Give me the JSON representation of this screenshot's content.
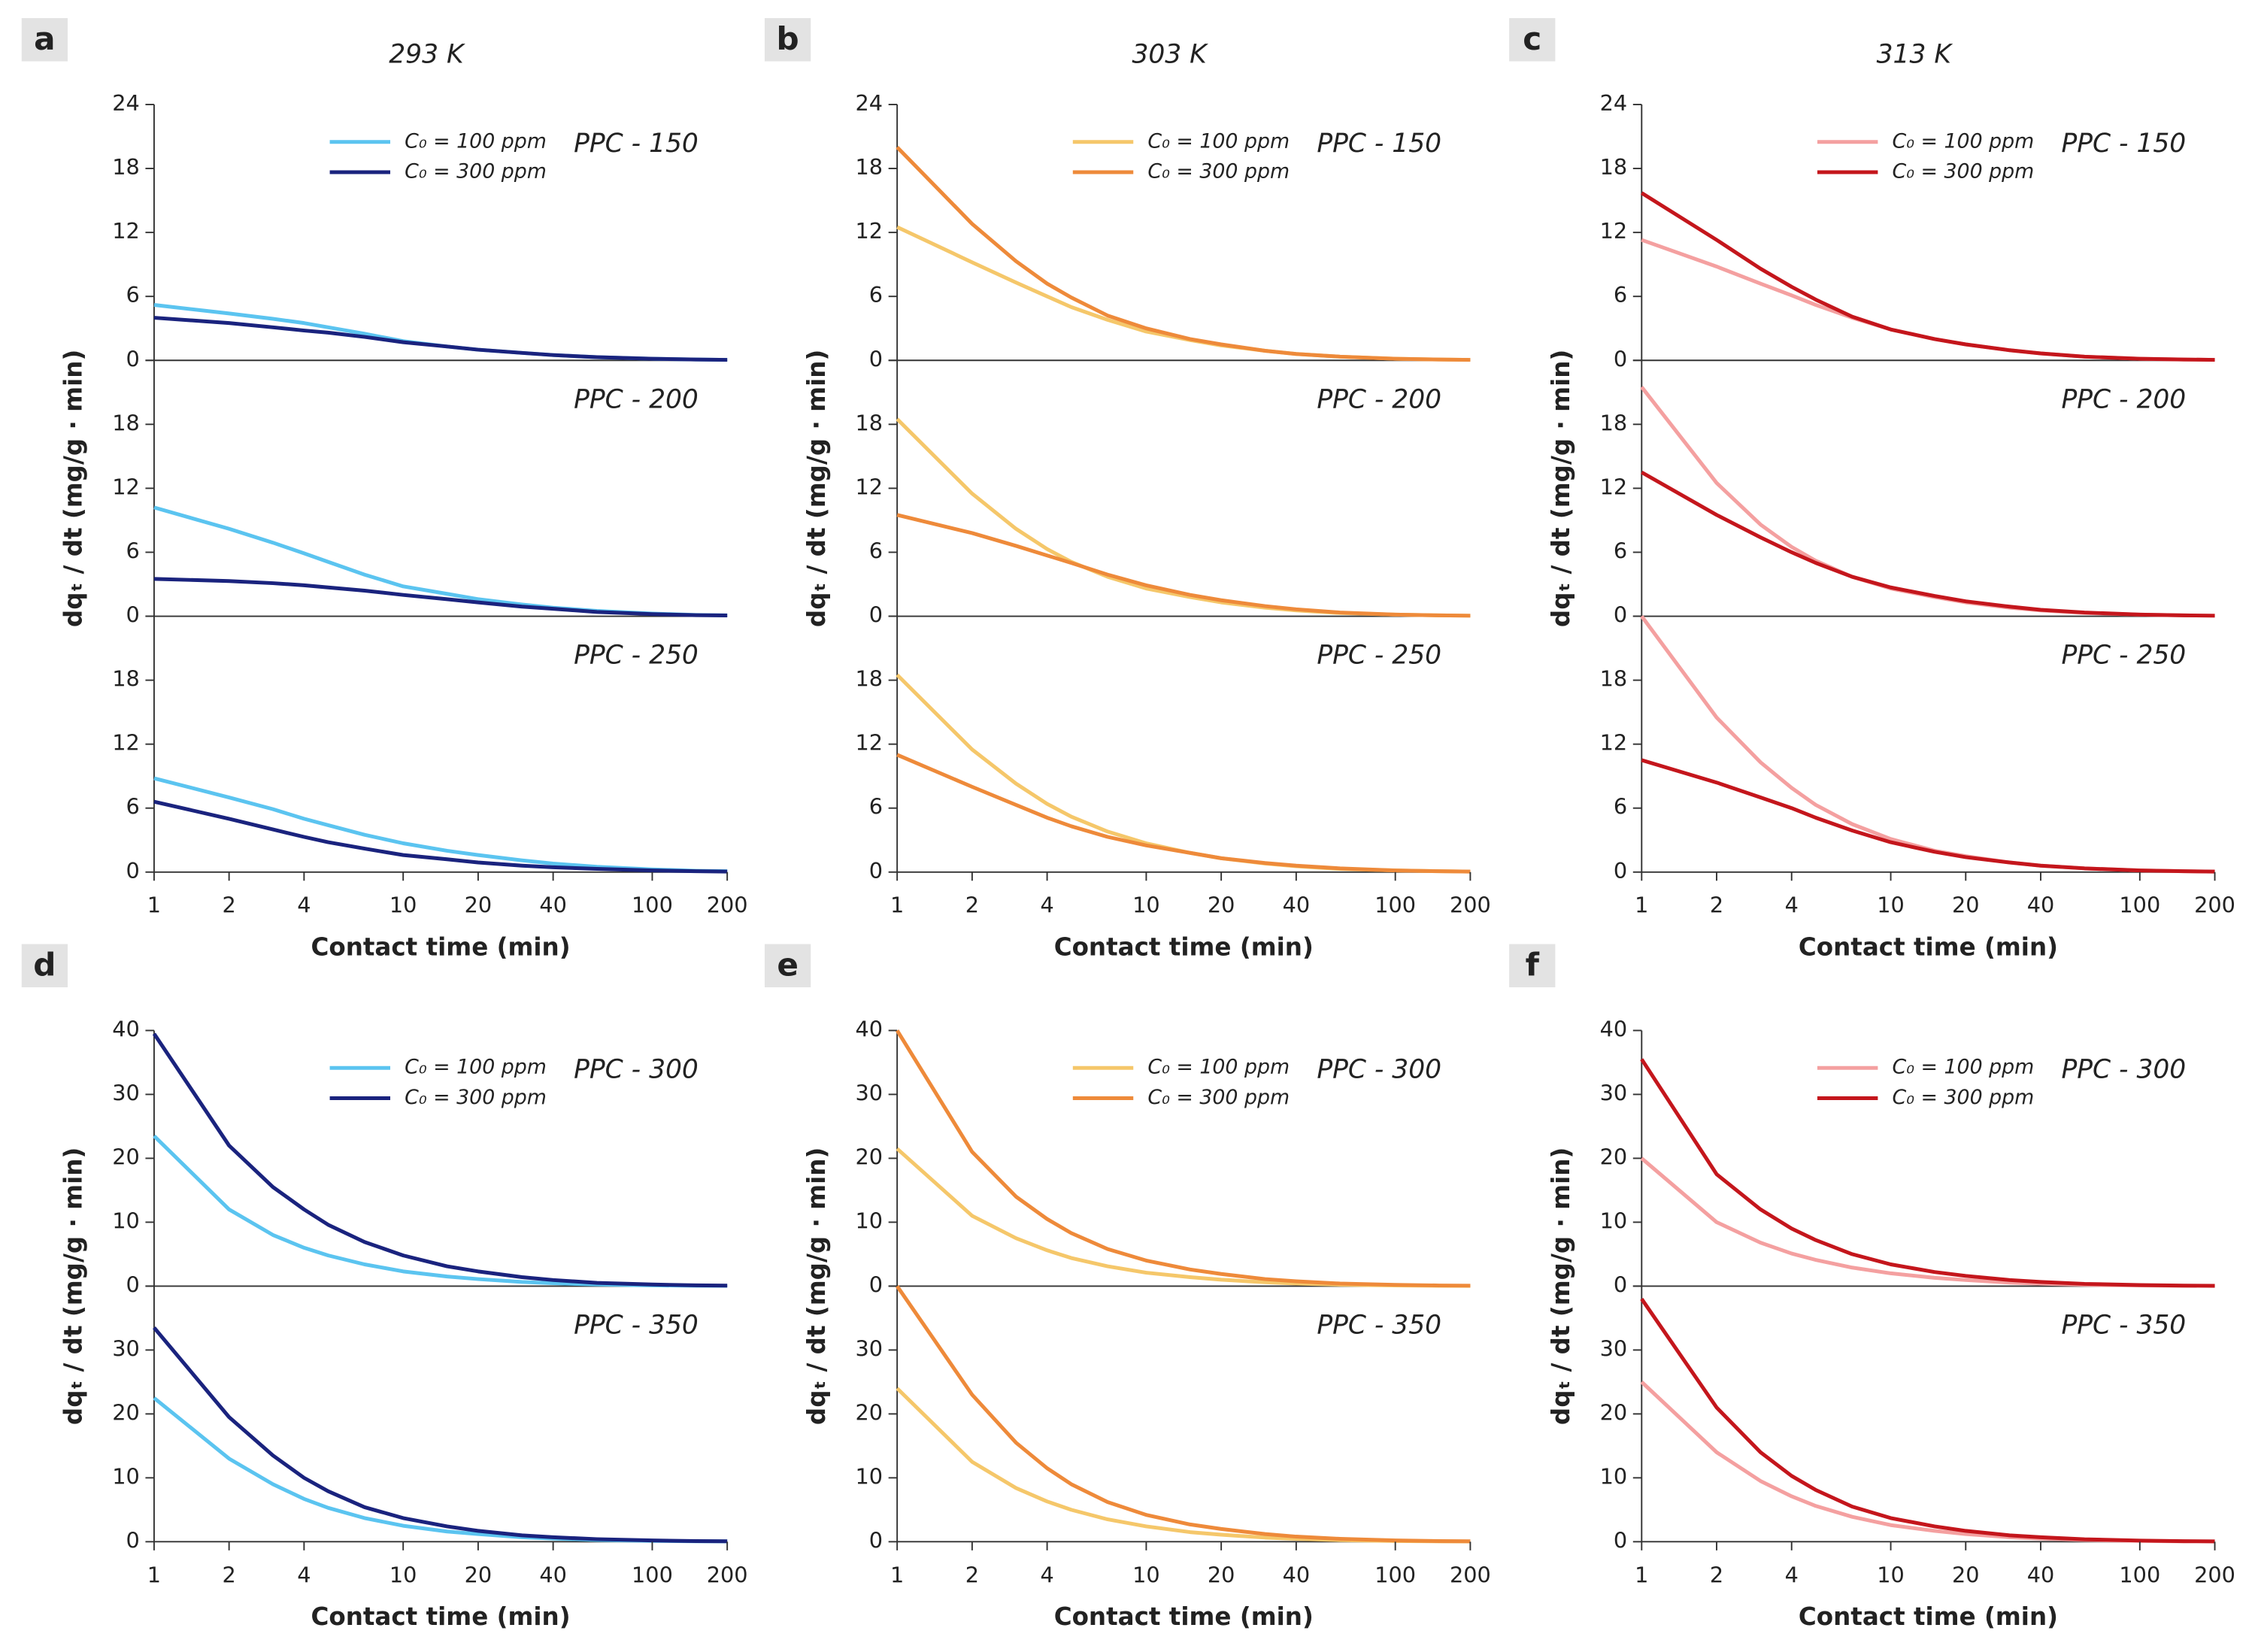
{
  "chart_data": [
    {
      "type": "line",
      "label": "a",
      "title": "293 K",
      "xlabel": "Contact time (min)",
      "ylabel": "dqₜ / dt (mg/g · min)",
      "x": [
        1,
        2,
        3,
        4,
        5,
        7,
        10,
        15,
        20,
        30,
        40,
        60,
        100,
        150,
        200
      ],
      "xlim": [
        1,
        200
      ],
      "xticks": [
        1,
        2,
        4,
        10,
        20,
        40,
        100,
        200
      ],
      "log_x": true,
      "ylim": [
        0,
        24
      ],
      "yticks": [
        0,
        6,
        12,
        18,
        24
      ],
      "subplots": [
        {
          "annotation": "PPC - 150",
          "series": [
            {
              "name": "C₀ = 100 ppm",
              "color": "#5bc4f0",
              "values": [
                5.2,
                4.4,
                3.9,
                3.5,
                3.1,
                2.5,
                1.8,
                1.3,
                1.0,
                0.7,
                0.5,
                0.3,
                0.15,
                0.08,
                0.05
              ]
            },
            {
              "name": "C₀ = 300 ppm",
              "color": "#1a237e",
              "values": [
                4.0,
                3.5,
                3.1,
                2.8,
                2.6,
                2.2,
                1.7,
                1.3,
                1.0,
                0.7,
                0.5,
                0.3,
                0.15,
                0.08,
                0.05
              ]
            }
          ]
        },
        {
          "annotation": "PPC - 200",
          "series": [
            {
              "color": "#5bc4f0",
              "values": [
                10.2,
                8.2,
                6.9,
                5.9,
                5.1,
                3.9,
                2.8,
                2.1,
                1.6,
                1.1,
                0.8,
                0.5,
                0.25,
                0.12,
                0.08
              ]
            },
            {
              "color": "#1a237e",
              "values": [
                3.5,
                3.3,
                3.1,
                2.9,
                2.7,
                2.4,
                2.0,
                1.6,
                1.3,
                0.9,
                0.7,
                0.4,
                0.2,
                0.1,
                0.07
              ]
            }
          ]
        },
        {
          "annotation": "PPC - 250",
          "series": [
            {
              "color": "#5bc4f0",
              "values": [
                8.8,
                7.0,
                5.9,
                5.0,
                4.4,
                3.5,
                2.7,
                2.0,
                1.6,
                1.1,
                0.8,
                0.5,
                0.25,
                0.12,
                0.08
              ]
            },
            {
              "color": "#1a237e",
              "values": [
                6.6,
                5.0,
                4.0,
                3.3,
                2.8,
                2.2,
                1.6,
                1.2,
                0.9,
                0.6,
                0.45,
                0.3,
                0.15,
                0.08,
                0.05
              ]
            }
          ]
        }
      ]
    },
    {
      "type": "line",
      "label": "b",
      "title": "303 K",
      "xlabel": "Contact time (min)",
      "ylabel": "dqₜ / dt (mg/g · min)",
      "x": [
        1,
        2,
        3,
        4,
        5,
        7,
        10,
        15,
        20,
        30,
        40,
        60,
        100,
        150,
        200
      ],
      "xlim": [
        1,
        200
      ],
      "xticks": [
        1,
        2,
        4,
        10,
        20,
        40,
        100,
        200
      ],
      "log_x": true,
      "ylim": [
        0,
        24
      ],
      "yticks": [
        0,
        6,
        12,
        18,
        24
      ],
      "subplots": [
        {
          "annotation": "PPC - 150",
          "series": [
            {
              "name": "C₀ = 100 ppm",
              "color": "#f5c76a",
              "values": [
                12.5,
                9.2,
                7.3,
                6.0,
                5.0,
                3.8,
                2.7,
                1.9,
                1.4,
                0.9,
                0.6,
                0.35,
                0.15,
                0.08,
                0.05
              ]
            },
            {
              "name": "C₀ = 300 ppm",
              "color": "#ee8a3a",
              "values": [
                20,
                12.8,
                9.3,
                7.2,
                5.9,
                4.2,
                3.0,
                2.0,
                1.5,
                0.9,
                0.6,
                0.35,
                0.15,
                0.08,
                0.05
              ]
            }
          ]
        },
        {
          "annotation": "PPC - 200",
          "series": [
            {
              "color": "#f5c76a",
              "values": [
                18.5,
                11.5,
                8.2,
                6.3,
                5.1,
                3.7,
                2.6,
                1.8,
                1.3,
                0.8,
                0.55,
                0.3,
                0.15,
                0.08,
                0.05
              ]
            },
            {
              "color": "#ee8a3a",
              "values": [
                9.5,
                7.8,
                6.6,
                5.7,
                5.0,
                3.9,
                2.9,
                2.0,
                1.5,
                0.95,
                0.65,
                0.35,
                0.15,
                0.08,
                0.05
              ]
            }
          ]
        },
        {
          "annotation": "PPC - 250",
          "series": [
            {
              "color": "#f5c76a",
              "values": [
                18.5,
                11.5,
                8.3,
                6.4,
                5.2,
                3.8,
                2.7,
                1.8,
                1.3,
                0.8,
                0.55,
                0.3,
                0.15,
                0.08,
                0.05
              ]
            },
            {
              "color": "#ee8a3a",
              "values": [
                11,
                8.0,
                6.3,
                5.1,
                4.3,
                3.3,
                2.5,
                1.8,
                1.3,
                0.85,
                0.6,
                0.35,
                0.15,
                0.08,
                0.05
              ]
            }
          ]
        }
      ]
    },
    {
      "type": "line",
      "label": "c",
      "title": "313 K",
      "xlabel": "Contact time (min)",
      "ylabel": "dqₜ / dt (mg/g · min)",
      "x": [
        1,
        2,
        3,
        4,
        5,
        7,
        10,
        15,
        20,
        30,
        40,
        60,
        100,
        150,
        200
      ],
      "xlim": [
        1,
        200
      ],
      "xticks": [
        1,
        2,
        4,
        10,
        20,
        40,
        100,
        200
      ],
      "log_x": true,
      "ylim": [
        0,
        24
      ],
      "yticks": [
        0,
        6,
        12,
        18,
        24
      ],
      "subplots": [
        {
          "annotation": "PPC - 150",
          "series": [
            {
              "name": "C₀ = 100 ppm",
              "color": "#f4a0a0",
              "values": [
                11.3,
                8.8,
                7.2,
                6.1,
                5.2,
                4.0,
                2.9,
                2.0,
                1.5,
                0.95,
                0.65,
                0.35,
                0.15,
                0.08,
                0.05
              ]
            },
            {
              "name": "C₀ = 300 ppm",
              "color": "#c4161c",
              "values": [
                15.7,
                11.3,
                8.6,
                6.9,
                5.7,
                4.1,
                2.9,
                2.0,
                1.5,
                0.95,
                0.65,
                0.35,
                0.15,
                0.08,
                0.05
              ]
            }
          ]
        },
        {
          "annotation": "PPC - 200",
          "series": [
            {
              "color": "#f4a0a0",
              "values": [
                21.5,
                12.5,
                8.6,
                6.5,
                5.2,
                3.7,
                2.6,
                1.8,
                1.3,
                0.8,
                0.55,
                0.3,
                0.15,
                0.08,
                0.05
              ]
            },
            {
              "color": "#c4161c",
              "values": [
                13.5,
                9.5,
                7.4,
                6.0,
                5.0,
                3.7,
                2.7,
                1.9,
                1.4,
                0.9,
                0.6,
                0.35,
                0.15,
                0.08,
                0.05
              ]
            }
          ]
        },
        {
          "annotation": "PPC - 250",
          "series": [
            {
              "color": "#f4a0a0",
              "values": [
                24,
                14.5,
                10.3,
                7.9,
                6.3,
                4.5,
                3.1,
                2.0,
                1.5,
                0.9,
                0.6,
                0.35,
                0.15,
                0.08,
                0.05
              ]
            },
            {
              "color": "#c4161c",
              "values": [
                10.5,
                8.4,
                7.0,
                6.0,
                5.1,
                3.9,
                2.8,
                1.9,
                1.4,
                0.9,
                0.6,
                0.35,
                0.15,
                0.08,
                0.05
              ]
            }
          ]
        }
      ]
    },
    {
      "type": "line",
      "label": "d",
      "xlabel": "Contact time (min)",
      "ylabel": "dqₜ / dt (mg/g · min)",
      "x": [
        1,
        2,
        3,
        4,
        5,
        7,
        10,
        15,
        20,
        30,
        40,
        60,
        100,
        150,
        200
      ],
      "xlim": [
        1,
        200
      ],
      "xticks": [
        1,
        2,
        4,
        10,
        20,
        40,
        100,
        200
      ],
      "log_x": true,
      "ylim": [
        0,
        40
      ],
      "yticks": [
        0,
        10,
        20,
        30,
        40
      ],
      "subplots": [
        {
          "annotation": "PPC - 300",
          "series": [
            {
              "name": "C₀ = 100 ppm",
              "color": "#5bc4f0",
              "values": [
                23.5,
                12,
                8,
                6,
                4.8,
                3.4,
                2.3,
                1.5,
                1.1,
                0.65,
                0.45,
                0.25,
                0.12,
                0.06,
                0.04
              ]
            },
            {
              "name": "C₀ = 300 ppm",
              "color": "#1a237e",
              "values": [
                39.5,
                22,
                15.5,
                12,
                9.6,
                6.9,
                4.8,
                3.1,
                2.3,
                1.4,
                0.95,
                0.5,
                0.25,
                0.12,
                0.08
              ]
            }
          ]
        },
        {
          "annotation": "PPC - 350",
          "series": [
            {
              "color": "#5bc4f0",
              "values": [
                22.5,
                13,
                9,
                6.7,
                5.3,
                3.7,
                2.5,
                1.6,
                1.2,
                0.7,
                0.5,
                0.28,
                0.13,
                0.07,
                0.05
              ]
            },
            {
              "color": "#1a237e",
              "values": [
                33.5,
                19.5,
                13.5,
                10,
                7.9,
                5.4,
                3.7,
                2.4,
                1.7,
                1.0,
                0.7,
                0.4,
                0.2,
                0.1,
                0.07
              ]
            }
          ]
        }
      ]
    },
    {
      "type": "line",
      "label": "e",
      "xlabel": "Contact time (min)",
      "ylabel": "dqₜ / dt (mg/g · min)",
      "x": [
        1,
        2,
        3,
        4,
        5,
        7,
        10,
        15,
        20,
        30,
        40,
        60,
        100,
        150,
        200
      ],
      "xlim": [
        1,
        200
      ],
      "xticks": [
        1,
        2,
        4,
        10,
        20,
        40,
        100,
        200
      ],
      "log_x": true,
      "ylim": [
        0,
        40
      ],
      "yticks": [
        0,
        10,
        20,
        30,
        40
      ],
      "subplots": [
        {
          "annotation": "PPC - 300",
          "series": [
            {
              "name": "C₀ = 100 ppm",
              "color": "#f5c76a",
              "values": [
                21.5,
                11,
                7.5,
                5.6,
                4.4,
                3.1,
                2.1,
                1.4,
                1.0,
                0.6,
                0.4,
                0.22,
                0.1,
                0.05,
                0.03
              ]
            },
            {
              "name": "C₀ = 300 ppm",
              "color": "#ee8a3a",
              "values": [
                40,
                21,
                14,
                10.5,
                8.3,
                5.8,
                4.0,
                2.6,
                1.9,
                1.1,
                0.75,
                0.4,
                0.2,
                0.1,
                0.07
              ]
            }
          ]
        },
        {
          "annotation": "PPC - 350",
          "series": [
            {
              "color": "#f5c76a",
              "values": [
                24,
                12.5,
                8.4,
                6.3,
                5.0,
                3.5,
                2.4,
                1.5,
                1.1,
                0.65,
                0.45,
                0.25,
                0.12,
                0.06,
                0.04
              ]
            },
            {
              "color": "#ee8a3a",
              "values": [
                40,
                23,
                15.5,
                11.5,
                9.0,
                6.2,
                4.2,
                2.7,
                2.0,
                1.2,
                0.8,
                0.45,
                0.2,
                0.1,
                0.07
              ]
            }
          ]
        }
      ]
    },
    {
      "type": "line",
      "label": "f",
      "xlabel": "Contact time (min)",
      "ylabel": "dqₜ / dt (mg/g · min)",
      "x": [
        1,
        2,
        3,
        4,
        5,
        7,
        10,
        15,
        20,
        30,
        40,
        60,
        100,
        150,
        200
      ],
      "xlim": [
        1,
        200
      ],
      "xticks": [
        1,
        2,
        4,
        10,
        20,
        40,
        100,
        200
      ],
      "log_x": true,
      "ylim": [
        0,
        40
      ],
      "yticks": [
        0,
        10,
        20,
        30,
        40
      ],
      "subplots": [
        {
          "annotation": "PPC - 300",
          "series": [
            {
              "name": "C₀ = 100 ppm",
              "color": "#f4a0a0",
              "values": [
                20,
                10,
                6.8,
                5.1,
                4.1,
                2.9,
                2.0,
                1.3,
                0.95,
                0.55,
                0.38,
                0.2,
                0.1,
                0.05,
                0.03
              ]
            },
            {
              "name": "C₀ = 300 ppm",
              "color": "#c4161c",
              "values": [
                35.5,
                17.5,
                12,
                9,
                7.2,
                5.0,
                3.4,
                2.2,
                1.6,
                0.95,
                0.65,
                0.35,
                0.17,
                0.08,
                0.05
              ]
            }
          ]
        },
        {
          "annotation": "PPC - 350",
          "series": [
            {
              "color": "#f4a0a0",
              "values": [
                25,
                14,
                9.5,
                7.1,
                5.6,
                3.9,
                2.6,
                1.7,
                1.2,
                0.7,
                0.5,
                0.27,
                0.13,
                0.06,
                0.04
              ]
            },
            {
              "color": "#c4161c",
              "values": [
                38,
                21,
                14,
                10.3,
                8.1,
                5.5,
                3.7,
                2.4,
                1.7,
                1.0,
                0.7,
                0.38,
                0.18,
                0.09,
                0.06
              ]
            }
          ]
        }
      ]
    }
  ]
}
